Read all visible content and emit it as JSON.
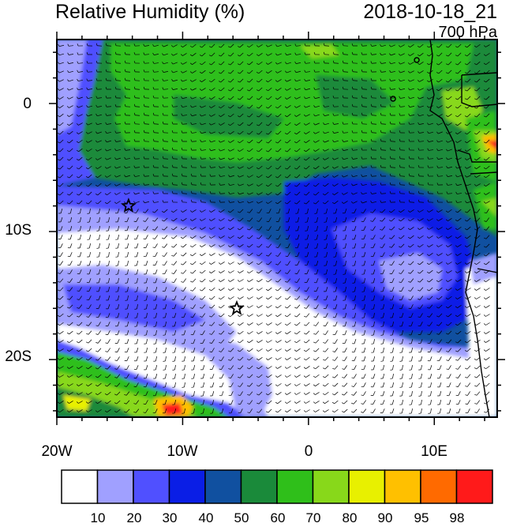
{
  "header": {
    "title": "Relative Humidity (%)",
    "datetime": "2018-10-18_21",
    "level": "700 hPa"
  },
  "map": {
    "x_ticks": [
      "20W",
      "10W",
      "0",
      "10E"
    ],
    "y_ticks": [
      "0",
      "10S",
      "20S"
    ],
    "lon_range": [
      -20,
      15
    ],
    "lat_range": [
      -24.5,
      5
    ],
    "markers": [
      {
        "name": "star",
        "lon": -14.3,
        "lat": -8.0
      },
      {
        "name": "star",
        "lon": -5.7,
        "lat": -16.0
      }
    ]
  },
  "colorbar": {
    "labels": [
      "10",
      "20",
      "30",
      "40",
      "50",
      "60",
      "70",
      "80",
      "90",
      "95",
      "98"
    ],
    "colors": [
      "#ffffff",
      "#a0a0ff",
      "#5050ff",
      "#0a1ee6",
      "#1050a0",
      "#1a8a3a",
      "#2fbf1a",
      "#88d81a",
      "#e8f000",
      "#ffc000",
      "#ff6a00",
      "#ff1a1a"
    ]
  }
}
